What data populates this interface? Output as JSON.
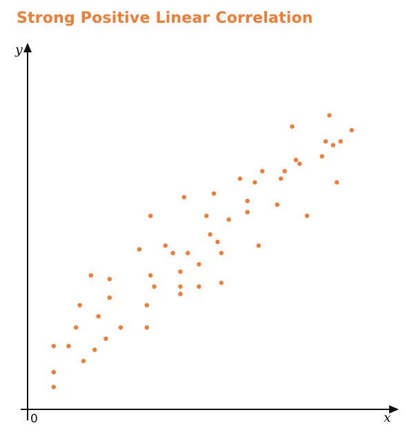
{
  "chart_data": {
    "type": "scatter",
    "title": "Strong Positive Linear Correlation",
    "xlabel": "x",
    "ylabel": "y",
    "origin_label": "0",
    "grid": false,
    "legend": "none",
    "color": "#f47c30",
    "xlim": [
      0,
      100
    ],
    "ylim": [
      0,
      100
    ],
    "points": [
      [
        7,
        6
      ],
      [
        7,
        10
      ],
      [
        7,
        17
      ],
      [
        11,
        17
      ],
      [
        15,
        13
      ],
      [
        13,
        22
      ],
      [
        14,
        28
      ],
      [
        18,
        16
      ],
      [
        17,
        36
      ],
      [
        19,
        25
      ],
      [
        22,
        35
      ],
      [
        21,
        19
      ],
      [
        22,
        30
      ],
      [
        25,
        22
      ],
      [
        30,
        43
      ],
      [
        32,
        22
      ],
      [
        32,
        28
      ],
      [
        33,
        36
      ],
      [
        34,
        33
      ],
      [
        33,
        52
      ],
      [
        37,
        44
      ],
      [
        39,
        42
      ],
      [
        41,
        31
      ],
      [
        41,
        37
      ],
      [
        41,
        33
      ],
      [
        42,
        57
      ],
      [
        43,
        42
      ],
      [
        46,
        39
      ],
      [
        46,
        33
      ],
      [
        48,
        52
      ],
      [
        49,
        47
      ],
      [
        50,
        58
      ],
      [
        51,
        45
      ],
      [
        52,
        42
      ],
      [
        52,
        34
      ],
      [
        54,
        51
      ],
      [
        57,
        62
      ],
      [
        59,
        53
      ],
      [
        59,
        56
      ],
      [
        61,
        61
      ],
      [
        62,
        44
      ],
      [
        63,
        64
      ],
      [
        67,
        55
      ],
      [
        68,
        62
      ],
      [
        69,
        64
      ],
      [
        71,
        76
      ],
      [
        72,
        67
      ],
      [
        73,
        66
      ],
      [
        75,
        52
      ],
      [
        79,
        68
      ],
      [
        80,
        72
      ],
      [
        81,
        79
      ],
      [
        82,
        71
      ],
      [
        83,
        61
      ],
      [
        84,
        72
      ],
      [
        87,
        75
      ]
    ]
  }
}
